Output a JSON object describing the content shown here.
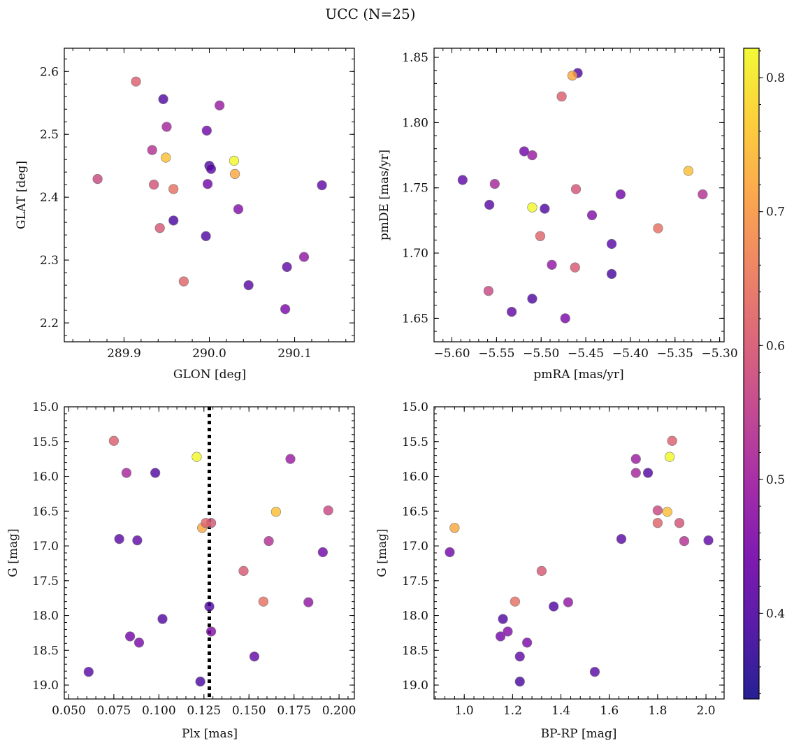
{
  "figure": {
    "title": "UCC (N=25)"
  },
  "colorbar": {
    "range": [
      0.336,
      0.822
    ],
    "ticks": [
      0.4,
      0.5,
      0.6,
      0.7,
      0.8
    ],
    "tick_labels": [
      "0.4",
      "0.5",
      "0.6",
      "0.7",
      "0.8"
    ],
    "colormap": "plasma",
    "colormap_stops": [
      "#0d0887",
      "#46039f",
      "#7201a8",
      "#9c179e",
      "#bd3786",
      "#d8576b",
      "#ed7953",
      "#fb9f3a",
      "#fdca26",
      "#f0f921"
    ],
    "point_alpha": 0.8
  },
  "points": [
    {
      "glon": 289.914,
      "glat": 2.584,
      "pmra": -5.477,
      "pmde": 1.82,
      "plx": 0.075,
      "g": 15.49,
      "bprp": 1.86,
      "color": 0.61
    },
    {
      "glon": 289.946,
      "glat": 2.556,
      "pmra": -5.459,
      "pmde": 1.838,
      "plx": 0.098,
      "g": 15.95,
      "bprp": 1.76,
      "color": 0.4
    },
    {
      "glon": 290.012,
      "glat": 2.546,
      "pmra": -5.51,
      "pmde": 1.775,
      "plx": 0.173,
      "g": 15.75,
      "bprp": 1.71,
      "color": 0.49
    },
    {
      "glon": 289.95,
      "glat": 2.512,
      "pmra": -5.552,
      "pmde": 1.753,
      "plx": 0.082,
      "g": 15.95,
      "bprp": 1.71,
      "color": 0.51
    },
    {
      "glon": 289.997,
      "glat": 2.506,
      "pmra": -5.519,
      "pmde": 1.778,
      "plx": 0.191,
      "g": 17.09,
      "bprp": 0.94,
      "color": 0.44
    },
    {
      "glon": 289.933,
      "glat": 2.475,
      "pmra": -5.319,
      "pmde": 1.745,
      "plx": 0.161,
      "g": 16.93,
      "bprp": 1.91,
      "color": 0.53
    },
    {
      "glon": 289.949,
      "glat": 2.463,
      "pmra": -5.335,
      "pmde": 1.763,
      "plx": 0.165,
      "g": 16.51,
      "bprp": 1.84,
      "color": 0.75
    },
    {
      "glon": 290.029,
      "glat": 2.458,
      "pmra": -5.51,
      "pmde": 1.735,
      "plx": 0.121,
      "g": 15.72,
      "bprp": 1.85,
      "color": 0.82
    },
    {
      "glon": 290.0,
      "glat": 2.45,
      "pmra": -5.496,
      "pmde": 1.734,
      "plx": 0.128,
      "g": 17.87,
      "bprp": 1.37,
      "color": 0.4
    },
    {
      "glon": 290.002,
      "glat": 2.445,
      "pmra": -5.421,
      "pmde": 1.707,
      "plx": 0.078,
      "g": 16.9,
      "bprp": 1.65,
      "color": 0.41
    },
    {
      "glon": 290.03,
      "glat": 2.437,
      "pmra": -5.465,
      "pmde": 1.836,
      "plx": 0.124,
      "g": 16.74,
      "bprp": 0.96,
      "color": 0.72
    },
    {
      "glon": 289.869,
      "glat": 2.429,
      "pmra": -5.559,
      "pmde": 1.671,
      "plx": 0.194,
      "g": 16.49,
      "bprp": 1.8,
      "color": 0.57
    },
    {
      "glon": 290.132,
      "glat": 2.419,
      "pmra": -5.588,
      "pmde": 1.756,
      "plx": 0.088,
      "g": 16.92,
      "bprp": 2.01,
      "color": 0.42
    },
    {
      "glon": 289.935,
      "glat": 2.42,
      "pmra": -5.461,
      "pmde": 1.749,
      "plx": 0.129,
      "g": 16.67,
      "bprp": 1.89,
      "color": 0.59
    },
    {
      "glon": 289.998,
      "glat": 2.421,
      "pmra": -5.411,
      "pmde": 1.745,
      "plx": 0.084,
      "g": 18.3,
      "bprp": 1.15,
      "color": 0.44
    },
    {
      "glon": 289.958,
      "glat": 2.413,
      "pmra": -5.369,
      "pmde": 1.719,
      "plx": 0.158,
      "g": 17.8,
      "bprp": 1.21,
      "color": 0.64
    },
    {
      "glon": 290.034,
      "glat": 2.381,
      "pmra": -5.443,
      "pmde": 1.729,
      "plx": 0.129,
      "g": 18.23,
      "bprp": 1.18,
      "color": 0.46
    },
    {
      "glon": 289.958,
      "glat": 2.363,
      "pmra": -5.421,
      "pmde": 1.684,
      "plx": 0.123,
      "g": 18.95,
      "bprp": 1.23,
      "color": 0.39
    },
    {
      "glon": 289.942,
      "glat": 2.351,
      "pmra": -5.462,
      "pmde": 1.689,
      "plx": 0.147,
      "g": 17.36,
      "bprp": 1.32,
      "color": 0.6
    },
    {
      "glon": 289.996,
      "glat": 2.338,
      "pmra": -5.51,
      "pmde": 1.665,
      "plx": 0.102,
      "g": 18.05,
      "bprp": 1.16,
      "color": 0.4
    },
    {
      "glon": 290.111,
      "glat": 2.305,
      "pmra": -5.488,
      "pmde": 1.691,
      "plx": 0.183,
      "g": 17.81,
      "bprp": 1.43,
      "color": 0.48
    },
    {
      "glon": 290.091,
      "glat": 2.289,
      "pmra": -5.533,
      "pmde": 1.655,
      "plx": 0.153,
      "g": 18.59,
      "bprp": 1.23,
      "color": 0.42
    },
    {
      "glon": 289.97,
      "glat": 2.266,
      "pmra": -5.501,
      "pmde": 1.713,
      "plx": 0.126,
      "g": 16.67,
      "bprp": 1.8,
      "color": 0.62
    },
    {
      "glon": 290.046,
      "glat": 2.26,
      "pmra": -5.558,
      "pmde": 1.737,
      "plx": 0.061,
      "g": 18.81,
      "bprp": 1.54,
      "color": 0.41
    },
    {
      "glon": 290.089,
      "glat": 2.222,
      "pmra": -5.473,
      "pmde": 1.65,
      "plx": 0.089,
      "g": 18.39,
      "bprp": 1.26,
      "color": 0.45
    }
  ],
  "chart_data": [
    {
      "type": "scatter",
      "x_field": "glon",
      "y_field": "glat",
      "xlabel": "GLON [deg]",
      "ylabel": "GLAT [deg]",
      "xlim": [
        289.83,
        290.17
      ],
      "ylim": [
        2.17,
        2.637
      ],
      "xticks": [
        289.9,
        290.0,
        290.1
      ],
      "xtick_labels": [
        "289.9",
        "290.0",
        "290.1"
      ],
      "yticks": [
        2.2,
        2.3,
        2.4,
        2.5,
        2.6
      ],
      "ytick_labels": [
        "2.2",
        "2.3",
        "2.4",
        "2.5",
        "2.6"
      ],
      "y_inverted": false,
      "grid": false
    },
    {
      "type": "scatter",
      "x_field": "pmra",
      "y_field": "pmde",
      "xlabel": "pmRA [mas/yr]",
      "ylabel": "pmDE [mas/yr]",
      "xlim": [
        -5.62,
        -5.295
      ],
      "ylim": [
        1.632,
        1.857
      ],
      "xticks": [
        -5.6,
        -5.55,
        -5.5,
        -5.45,
        -5.4,
        -5.35,
        -5.3
      ],
      "xtick_labels": [
        "−5.60",
        "−5.55",
        "−5.50",
        "−5.45",
        "−5.40",
        "−5.35",
        "−5.30"
      ],
      "yticks": [
        1.65,
        1.7,
        1.75,
        1.8,
        1.85
      ],
      "ytick_labels": [
        "1.65",
        "1.70",
        "1.75",
        "1.80",
        "1.85"
      ],
      "y_inverted": false,
      "grid": false
    },
    {
      "type": "scatter",
      "x_field": "plx",
      "y_field": "g",
      "xlabel": "Plx [mas]",
      "ylabel": "G [mag]",
      "xlim": [
        0.0475,
        0.2085
      ],
      "ylim": [
        19.2,
        15.0
      ],
      "xticks": [
        0.05,
        0.075,
        0.1,
        0.125,
        0.15,
        0.175,
        0.2
      ],
      "xtick_labels": [
        "0.050",
        "0.075",
        "0.100",
        "0.125",
        "0.150",
        "0.175",
        "0.200"
      ],
      "yticks": [
        15.0,
        15.5,
        16.0,
        16.5,
        17.0,
        17.5,
        18.0,
        18.5,
        19.0
      ],
      "ytick_labels": [
        "15.0",
        "15.5",
        "16.0",
        "16.5",
        "17.0",
        "17.5",
        "18.0",
        "18.5",
        "19.0"
      ],
      "y_inverted": true,
      "vline": 0.128,
      "grid": false
    },
    {
      "type": "scatter",
      "x_field": "bprp",
      "y_field": "g",
      "xlabel": "BP-RP [mag]",
      "ylabel": "G [mag]",
      "xlim": [
        0.875,
        2.075
      ],
      "ylim": [
        19.2,
        15.0
      ],
      "xticks": [
        1.0,
        1.2,
        1.4,
        1.6,
        1.8,
        2.0
      ],
      "xtick_labels": [
        "1.0",
        "1.2",
        "1.4",
        "1.6",
        "1.8",
        "2.0"
      ],
      "yticks": [
        15.0,
        15.5,
        16.0,
        16.5,
        17.0,
        17.5,
        18.0,
        18.5,
        19.0
      ],
      "ytick_labels": [
        "15.0",
        "15.5",
        "16.0",
        "16.5",
        "17.0",
        "17.5",
        "18.0",
        "18.5",
        "19.0"
      ],
      "y_inverted": true,
      "grid": false
    }
  ]
}
